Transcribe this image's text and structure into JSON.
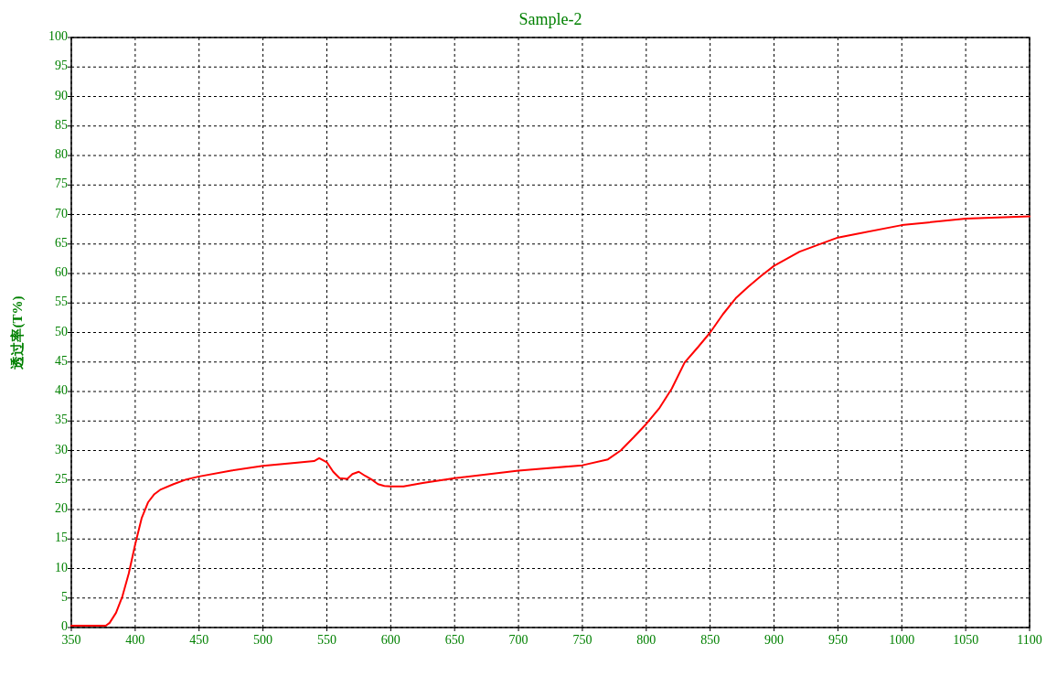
{
  "chart_data": {
    "type": "line",
    "title": "Sample-2",
    "ylabel": "透过率(T%)",
    "xlim": [
      350,
      1100
    ],
    "ylim": [
      0,
      100
    ],
    "xticks": [
      350,
      400,
      450,
      500,
      550,
      600,
      650,
      700,
      750,
      800,
      850,
      900,
      950,
      1000,
      1050,
      1100
    ],
    "yticks": [
      0,
      5,
      10,
      15,
      20,
      25,
      30,
      35,
      40,
      45,
      50,
      55,
      60,
      65,
      70,
      75,
      80,
      85,
      90,
      95,
      100
    ],
    "grid": true,
    "line_style": "solid",
    "marker": "none",
    "x": [
      350,
      370,
      377,
      380,
      385,
      390,
      395,
      400,
      405,
      410,
      415,
      420,
      430,
      440,
      450,
      475,
      500,
      525,
      540,
      544,
      550,
      555,
      560,
      566,
      570,
      575,
      580,
      585,
      590,
      595,
      600,
      610,
      625,
      650,
      700,
      750,
      770,
      780,
      790,
      800,
      810,
      820,
      830,
      840,
      850,
      860,
      870,
      880,
      890,
      900,
      920,
      950,
      1000,
      1050,
      1100
    ],
    "series": [
      {
        "color": "#ff0000",
        "values": [
          0.3,
          0.3,
          0.3,
          0.8,
          2.5,
          5.3,
          9.2,
          14.1,
          18.5,
          21.2,
          22.6,
          23.4,
          24.3,
          25.1,
          25.6,
          26.6,
          27.4,
          27.9,
          28.2,
          28.7,
          28.0,
          26.4,
          25.3,
          25.2,
          26.0,
          26.4,
          25.7,
          25.1,
          24.3,
          24.0,
          23.9,
          23.9,
          24.5,
          25.3,
          26.6,
          27.5,
          28.5,
          30.0,
          32.2,
          34.5,
          37.1,
          40.5,
          44.9,
          47.4,
          50.0,
          53.1,
          55.8,
          57.8,
          59.6,
          61.3,
          63.7,
          66.1,
          68.2,
          69.3,
          69.7
        ]
      }
    ]
  }
}
